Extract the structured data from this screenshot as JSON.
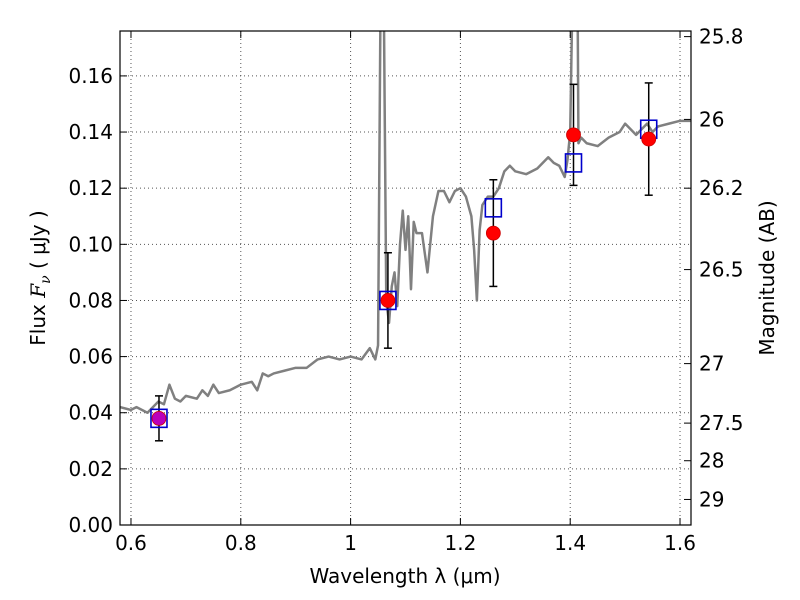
{
  "chart_data": {
    "type": "line",
    "title": "",
    "xlabel": "Wavelength  λ (μm)",
    "ylabel": "Flux  F_ν  ( μJy )",
    "ylabel_parts": {
      "prefix": "Flux  ",
      "symbol": "F",
      "subscript": "ν",
      "suffix": "  ( μJy )"
    },
    "y2label": "Magnitude (AB)",
    "xlim": [
      0.58,
      1.62
    ],
    "ylim": [
      0.0,
      0.176
    ],
    "grid": true,
    "x_ticks": [
      0.6,
      0.8,
      1.0,
      1.2,
      1.4,
      1.6
    ],
    "x_tick_labels": [
      "0.6",
      "0.8",
      "1",
      "1.2",
      "1.4",
      "1.6"
    ],
    "y_ticks": [
      0.0,
      0.02,
      0.04,
      0.06,
      0.08,
      0.1,
      0.12,
      0.14,
      0.16
    ],
    "y_tick_labels": [
      "0.00",
      "0.02",
      "0.04",
      "0.06",
      "0.08",
      "0.10",
      "0.12",
      "0.14",
      "0.16"
    ],
    "y2_ticks": [
      {
        "label": "25.8",
        "flux": 0.174
      },
      {
        "label": "26",
        "flux": 0.1445
      },
      {
        "label": "26.2",
        "flux": 0.12
      },
      {
        "label": "26.5",
        "flux": 0.091
      },
      {
        "label": "27",
        "flux": 0.0575
      },
      {
        "label": "27.5",
        "flux": 0.0363
      },
      {
        "label": "28",
        "flux": 0.0229
      },
      {
        "label": "29",
        "flux": 0.0091
      }
    ],
    "colors": {
      "model": "#808080",
      "observed": "#ff0000",
      "observed_edge": "#cc0000",
      "model_box": "#0000cc",
      "errorbar": "#000000",
      "overlap": "#bb00bb",
      "grid": "#555555"
    },
    "series": [
      {
        "name": "model spectrum",
        "type": "line",
        "x": [
          0.58,
          0.6,
          0.61,
          0.63,
          0.65,
          0.66,
          0.67,
          0.68,
          0.69,
          0.7,
          0.72,
          0.73,
          0.74,
          0.75,
          0.76,
          0.78,
          0.8,
          0.82,
          0.83,
          0.84,
          0.85,
          0.86,
          0.88,
          0.9,
          0.92,
          0.94,
          0.96,
          0.98,
          1.0,
          1.02,
          1.035,
          1.045,
          1.05,
          1.055,
          1.058,
          1.06,
          1.062,
          1.065,
          1.07,
          1.075,
          1.08,
          1.085,
          1.09,
          1.095,
          1.1,
          1.105,
          1.11,
          1.115,
          1.12,
          1.13,
          1.14,
          1.15,
          1.16,
          1.17,
          1.18,
          1.19,
          1.2,
          1.21,
          1.22,
          1.225,
          1.23,
          1.235,
          1.24,
          1.25,
          1.26,
          1.27,
          1.28,
          1.29,
          1.3,
          1.32,
          1.34,
          1.35,
          1.36,
          1.37,
          1.38,
          1.39,
          1.395,
          1.4,
          1.405,
          1.41,
          1.415,
          1.42,
          1.43,
          1.45,
          1.47,
          1.49,
          1.5,
          1.52,
          1.54,
          1.55,
          1.56,
          1.58,
          1.6,
          1.62
        ],
        "y": [
          0.042,
          0.041,
          0.042,
          0.04,
          0.044,
          0.043,
          0.05,
          0.045,
          0.044,
          0.046,
          0.045,
          0.048,
          0.046,
          0.05,
          0.047,
          0.048,
          0.05,
          0.051,
          0.048,
          0.054,
          0.053,
          0.054,
          0.055,
          0.056,
          0.056,
          0.059,
          0.06,
          0.059,
          0.06,
          0.059,
          0.063,
          0.059,
          0.064,
          0.2,
          0.3,
          0.2,
          0.15,
          0.08,
          0.072,
          0.085,
          0.09,
          0.078,
          0.1,
          0.112,
          0.098,
          0.11,
          0.084,
          0.108,
          0.104,
          0.104,
          0.09,
          0.11,
          0.119,
          0.119,
          0.115,
          0.119,
          0.12,
          0.117,
          0.11,
          0.098,
          0.08,
          0.105,
          0.114,
          0.117,
          0.117,
          0.12,
          0.126,
          0.128,
          0.126,
          0.125,
          0.127,
          0.129,
          0.131,
          0.129,
          0.128,
          0.124,
          0.13,
          0.14,
          0.2,
          0.3,
          0.136,
          0.138,
          0.136,
          0.135,
          0.138,
          0.14,
          0.143,
          0.139,
          0.143,
          0.14,
          0.142,
          0.143,
          0.144,
          0.144
        ]
      },
      {
        "name": "observed",
        "type": "scatter",
        "points": [
          {
            "x": 0.651,
            "y": 0.038,
            "yerr": 0.008
          },
          {
            "x": 1.068,
            "y": 0.08,
            "yerr": 0.017
          },
          {
            "x": 1.26,
            "y": 0.104,
            "yerr": 0.019
          },
          {
            "x": 1.406,
            "y": 0.139,
            "yerr": 0.018
          },
          {
            "x": 1.543,
            "y": 0.1375,
            "yerr": 0.02
          }
        ]
      },
      {
        "name": "model photometry",
        "type": "scatter",
        "points": [
          {
            "x": 0.651,
            "y": 0.038
          },
          {
            "x": 1.068,
            "y": 0.08
          },
          {
            "x": 1.26,
            "y": 0.113
          },
          {
            "x": 1.406,
            "y": 0.129
          },
          {
            "x": 1.543,
            "y": 0.141
          }
        ]
      }
    ]
  }
}
